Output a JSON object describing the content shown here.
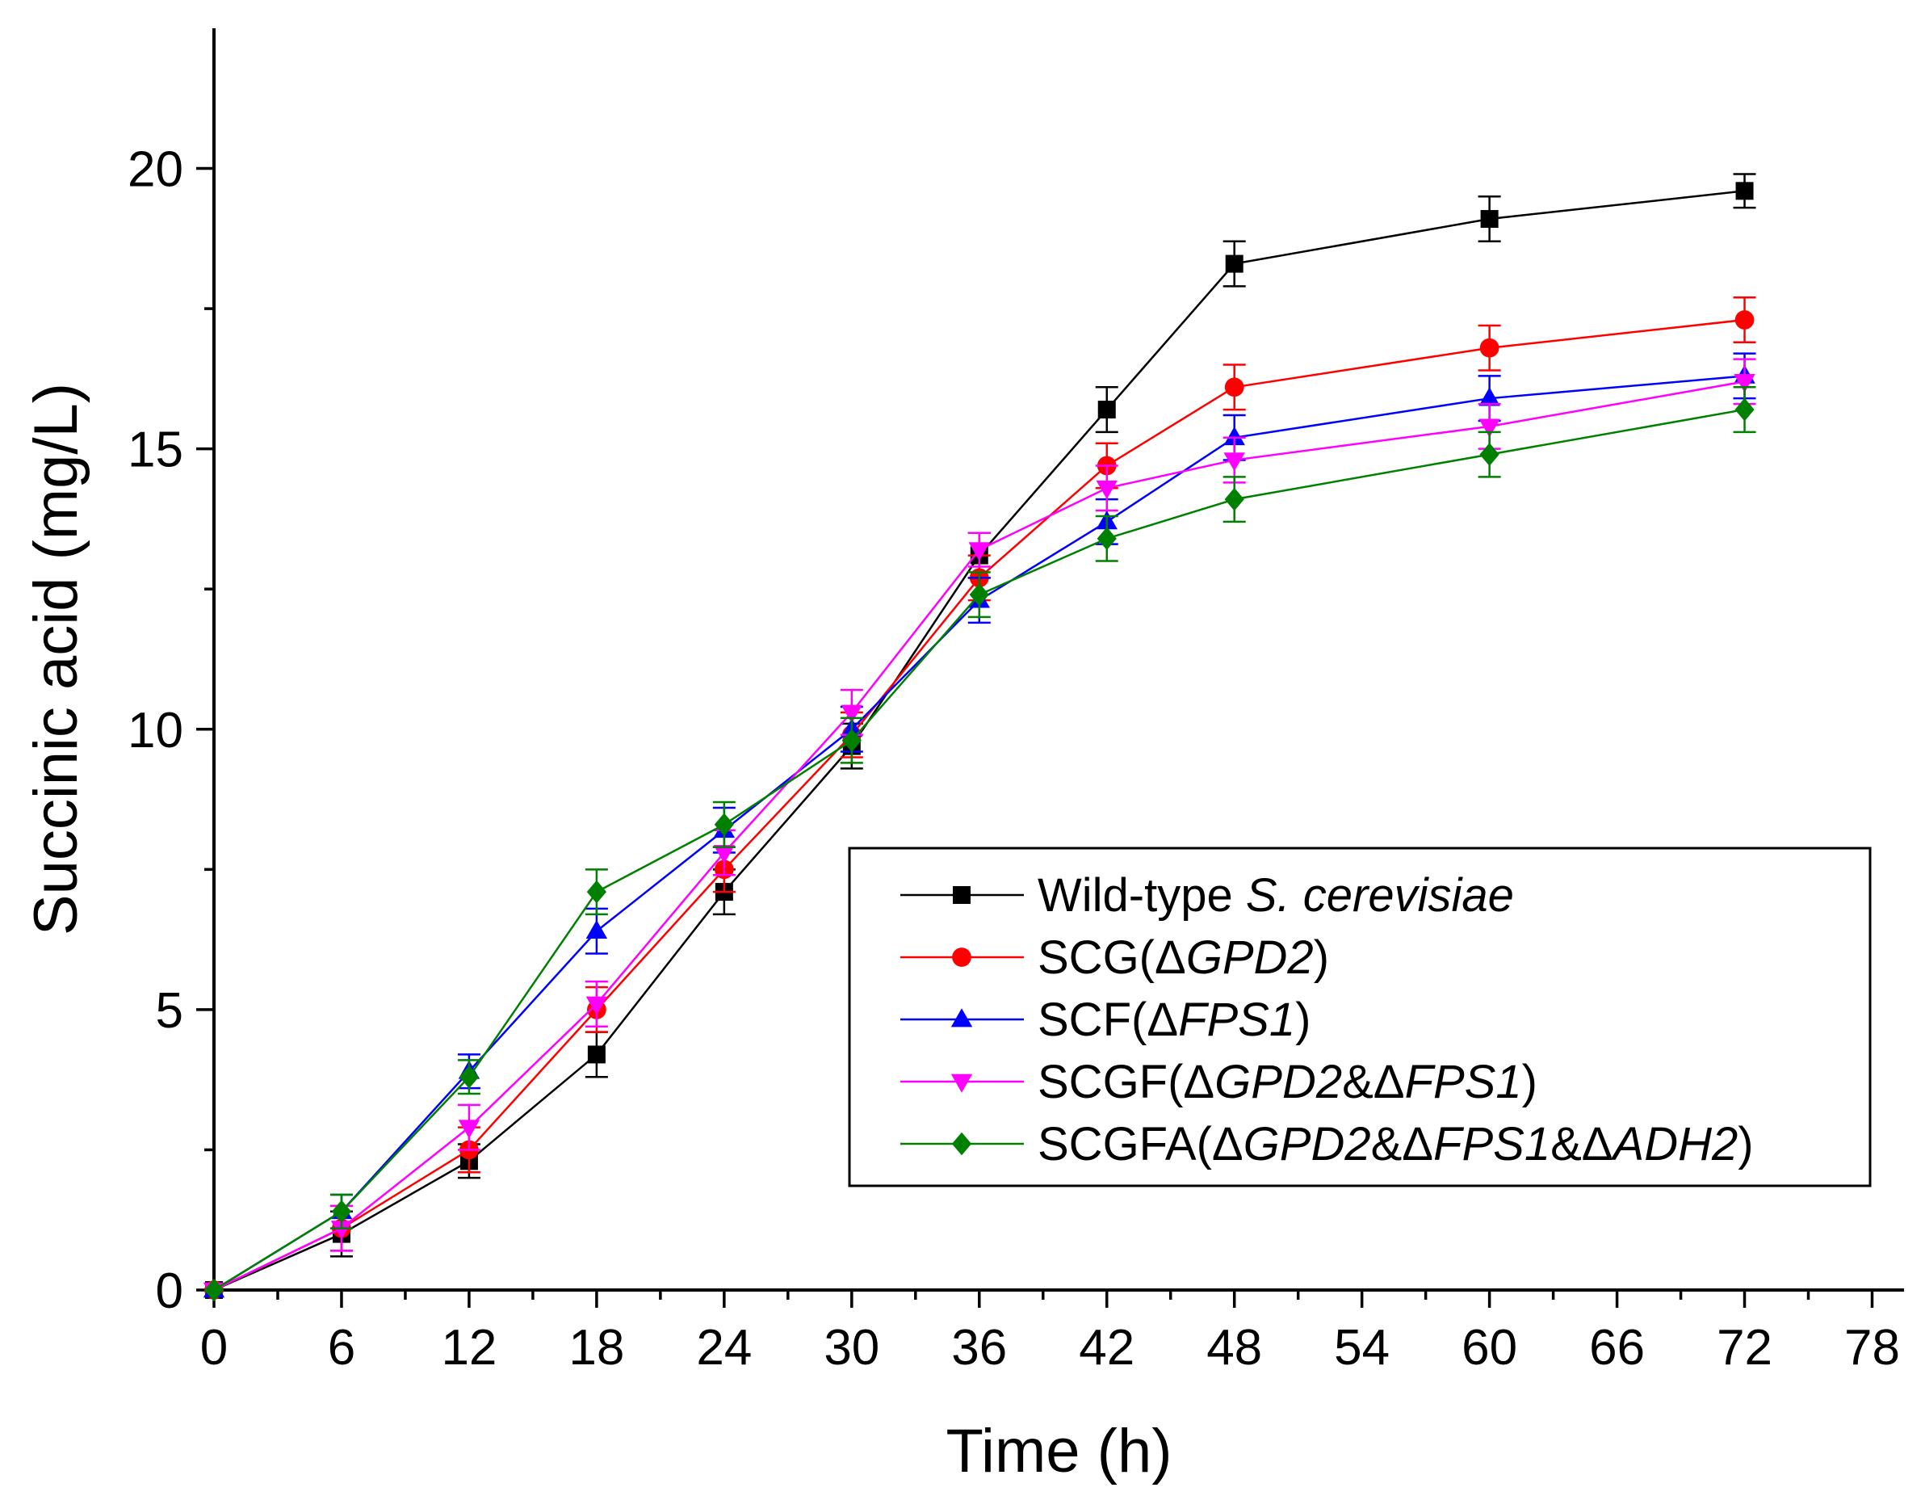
{
  "chart_data": {
    "type": "line",
    "title": "",
    "xlabel": "Time (h)",
    "ylabel": "Succinic acid (mg/L)",
    "xlim": [
      0,
      79.5
    ],
    "ylim": [
      0,
      22.5
    ],
    "xticks": [
      0,
      6,
      12,
      18,
      24,
      30,
      36,
      42,
      48,
      54,
      60,
      66,
      72,
      78
    ],
    "xtick_labels": [
      "0",
      "6",
      "12",
      "18",
      "24",
      "30",
      "36",
      "42",
      "48",
      "54",
      "60",
      "66",
      "72",
      "78"
    ],
    "yticks": [
      0,
      5,
      10,
      15,
      20
    ],
    "ytick_labels": [
      "0",
      "5",
      "10",
      "15",
      "20"
    ],
    "legend_position": "center-right",
    "series": [
      {
        "name": "Wild-type S. cerevisiae",
        "legend_parts": [
          [
            "Wild-type ",
            false
          ],
          [
            "S. cerevisiae",
            true
          ]
        ],
        "color": "#000000",
        "marker": "square",
        "x": [
          0,
          6,
          12,
          18,
          24,
          30,
          36,
          42,
          48,
          60,
          72
        ],
        "y": [
          0,
          1.0,
          2.3,
          4.2,
          7.1,
          9.7,
          13.1,
          15.7,
          18.3,
          19.1,
          19.6
        ],
        "err": [
          0,
          0.4,
          0.3,
          0.4,
          0.4,
          0.4,
          0.4,
          0.4,
          0.4,
          0.4,
          0.3
        ]
      },
      {
        "name": "SCG(ΔGPD2)",
        "legend_parts": [
          [
            "SCG(Δ",
            false
          ],
          [
            "GPD2",
            true
          ],
          [
            ")",
            false
          ]
        ],
        "color": "#ff0000",
        "marker": "circle",
        "x": [
          0,
          6,
          12,
          18,
          24,
          30,
          36,
          42,
          48,
          60,
          72
        ],
        "y": [
          0,
          1.1,
          2.5,
          5.0,
          7.5,
          9.9,
          12.7,
          14.7,
          16.1,
          16.8,
          17.3
        ],
        "err": [
          0,
          0.4,
          0.4,
          0.4,
          0.4,
          0.4,
          0.4,
          0.4,
          0.4,
          0.4,
          0.4
        ]
      },
      {
        "name": "SCF(ΔFPS1)",
        "legend_parts": [
          [
            "SCF(Δ",
            false
          ],
          [
            "FPS1",
            true
          ],
          [
            ")",
            false
          ]
        ],
        "color": "#0000ff",
        "marker": "triangle-up",
        "x": [
          0,
          6,
          12,
          18,
          24,
          30,
          36,
          42,
          48,
          60,
          72
        ],
        "y": [
          0,
          1.4,
          3.9,
          6.4,
          8.2,
          10.0,
          12.3,
          13.7,
          15.2,
          15.9,
          16.3
        ],
        "err": [
          0,
          0.3,
          0.3,
          0.4,
          0.4,
          0.4,
          0.4,
          0.4,
          0.4,
          0.4,
          0.4
        ]
      },
      {
        "name": "SCGF(ΔGPD2&ΔFPS1)",
        "legend_parts": [
          [
            "SCGF(Δ",
            false
          ],
          [
            "GPD2",
            true
          ],
          [
            "&Δ",
            false
          ],
          [
            "FPS1",
            true
          ],
          [
            ")",
            false
          ]
        ],
        "color": "#ff00ff",
        "marker": "triangle-down",
        "x": [
          0,
          6,
          12,
          18,
          24,
          30,
          36,
          42,
          48,
          60,
          72
        ],
        "y": [
          0,
          1.1,
          2.9,
          5.1,
          7.8,
          10.3,
          13.2,
          14.3,
          14.8,
          15.4,
          16.2
        ],
        "err": [
          0,
          0.4,
          0.4,
          0.4,
          0.4,
          0.4,
          0.3,
          0.4,
          0.4,
          0.4,
          0.4
        ]
      },
      {
        "name": "SCGFA(ΔGPD2&ΔFPS1&ΔADH2)",
        "legend_parts": [
          [
            "SCGFA(Δ",
            false
          ],
          [
            "GPD2",
            true
          ],
          [
            "&Δ",
            false
          ],
          [
            "FPS1",
            true
          ],
          [
            "&Δ",
            false
          ],
          [
            "ADH2",
            true
          ],
          [
            ")",
            false
          ]
        ],
        "color": "#008000",
        "marker": "diamond",
        "x": [
          0,
          6,
          12,
          18,
          24,
          30,
          36,
          42,
          48,
          60,
          72
        ],
        "y": [
          0,
          1.4,
          3.8,
          7.1,
          8.3,
          9.8,
          12.4,
          13.4,
          14.1,
          14.9,
          15.7
        ],
        "err": [
          0,
          0.3,
          0.3,
          0.4,
          0.4,
          0.4,
          0.4,
          0.4,
          0.4,
          0.4,
          0.4
        ]
      }
    ]
  }
}
